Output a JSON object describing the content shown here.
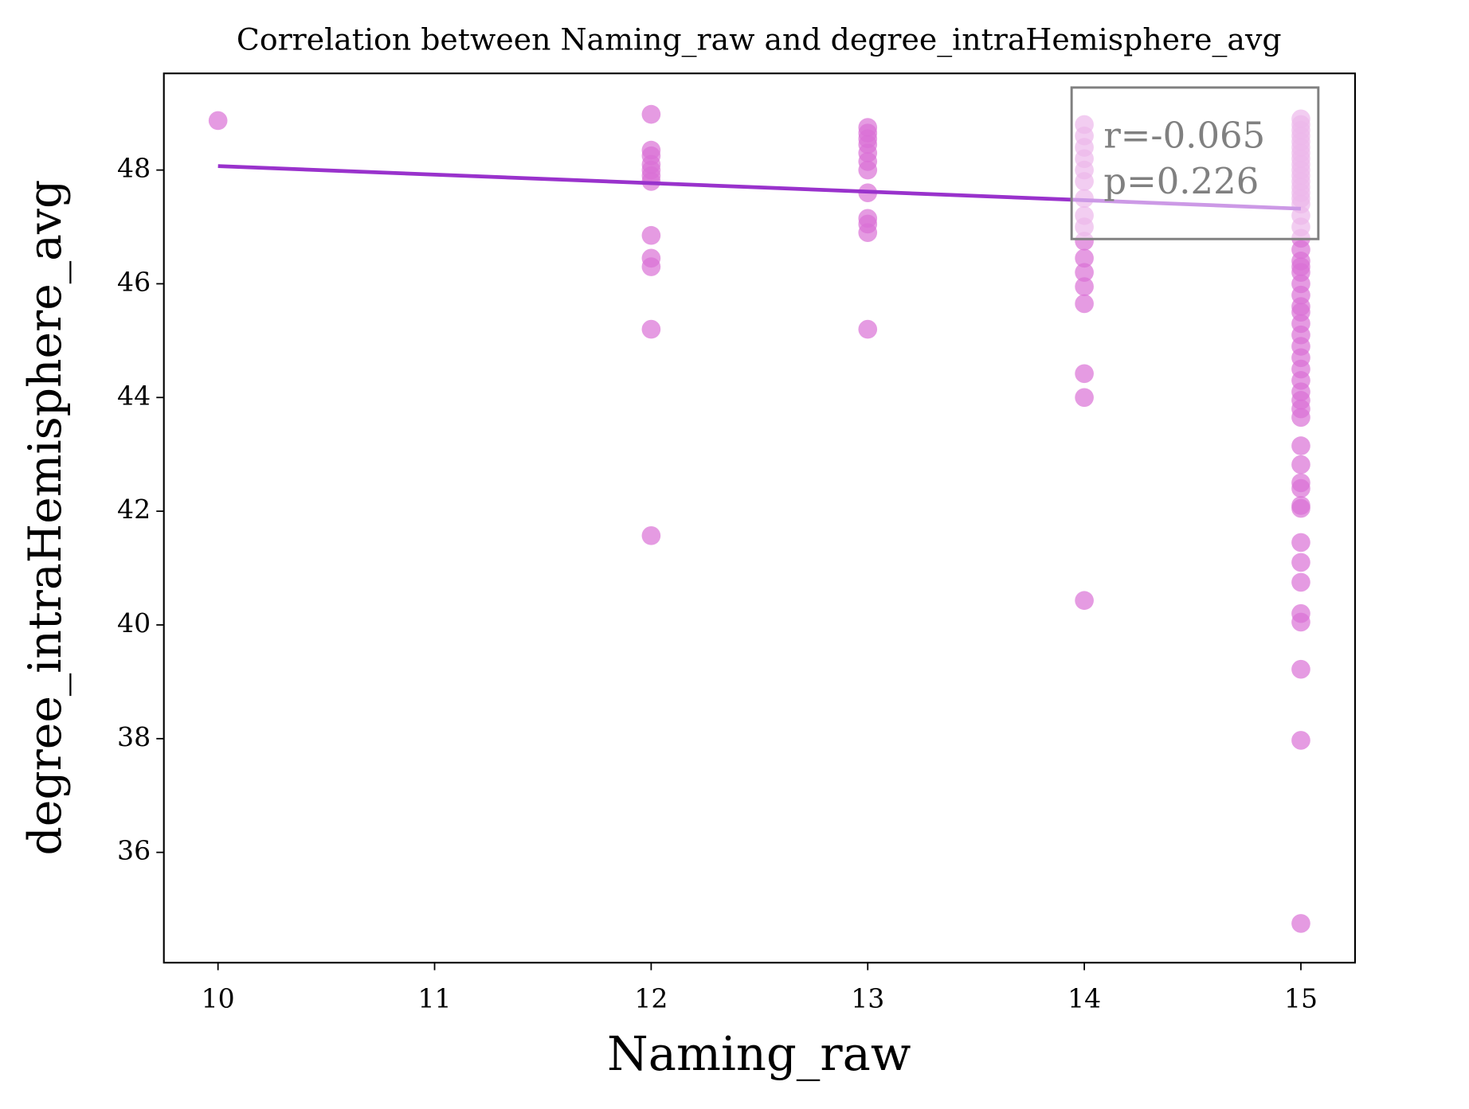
{
  "chart_data": {
    "type": "scatter",
    "title": "Correlation between Naming_raw and degree_intraHemisphere_avg",
    "xlabel": "Naming_raw",
    "ylabel": "degree_intraHemisphere_avg",
    "color": "#da70d6",
    "x": [
      10,
      12,
      12,
      12,
      12,
      12,
      12,
      12,
      12,
      12,
      12,
      12,
      12,
      13,
      13,
      13,
      13,
      13,
      13,
      13,
      13,
      13,
      13,
      13,
      13,
      14,
      14,
      14,
      14,
      14,
      14,
      14,
      14,
      14,
      14,
      14,
      14,
      14,
      14,
      14,
      14,
      14,
      15,
      15,
      15,
      15,
      15,
      15,
      15,
      15,
      15,
      15,
      15,
      15,
      15,
      15,
      15,
      15,
      15,
      15,
      15,
      15,
      15,
      15,
      15,
      15,
      15,
      15,
      15,
      15,
      15,
      15,
      15,
      15,
      15,
      15,
      15,
      15,
      15,
      15,
      15,
      15,
      15,
      15,
      15,
      15,
      15,
      15,
      15,
      15,
      15,
      15,
      15
    ],
    "values": [
      48.87,
      48.98,
      48.35,
      48.25,
      48.1,
      48.0,
      47.9,
      47.8,
      46.85,
      46.45,
      46.3,
      45.2,
      41.57,
      48.75,
      48.65,
      48.55,
      48.45,
      48.3,
      48.15,
      48.0,
      47.6,
      47.15,
      47.05,
      46.9,
      45.2,
      48.8,
      48.6,
      48.4,
      48.2,
      48.0,
      47.8,
      47.5,
      47.2,
      47.0,
      46.75,
      46.45,
      46.2,
      45.95,
      45.65,
      44.42,
      44.0,
      40.43,
      48.9,
      48.8,
      48.7,
      48.6,
      48.5,
      48.4,
      48.3,
      48.2,
      48.1,
      48.0,
      47.9,
      47.8,
      47.7,
      47.6,
      47.5,
      47.4,
      47.2,
      47.0,
      46.8,
      46.6,
      46.4,
      46.3,
      46.2,
      46.0,
      45.8,
      45.6,
      45.5,
      45.3,
      45.1,
      44.9,
      44.7,
      44.5,
      44.3,
      44.1,
      43.95,
      43.8,
      43.65,
      43.15,
      42.82,
      42.5,
      42.4,
      42.1,
      42.05,
      41.45,
      41.1,
      40.75,
      40.2,
      40.05,
      39.22,
      37.97,
      34.75
    ],
    "fit_line": {
      "x": [
        10,
        15
      ],
      "values": [
        48.07,
        47.32
      ],
      "color": "#9932cc"
    },
    "annotation": [
      "r=-0.065",
      "p=0.226"
    ],
    "xlim": [
      9.75,
      15.25
    ],
    "ylim": [
      34.06,
      49.7
    ],
    "xticks": [
      10,
      11,
      12,
      13,
      14,
      15
    ],
    "yticks": [
      36,
      38,
      40,
      42,
      44,
      46,
      48
    ]
  }
}
